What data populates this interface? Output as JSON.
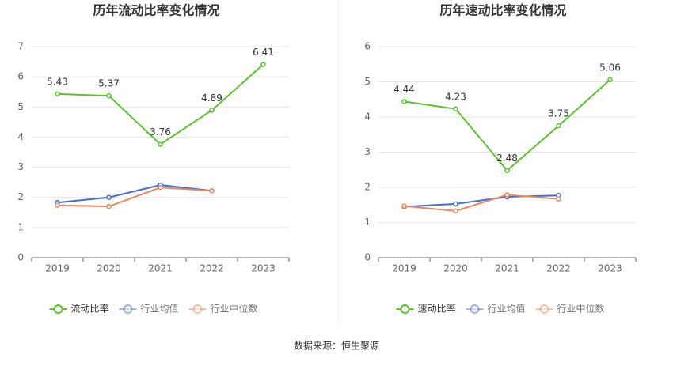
{
  "chart_data": [
    {
      "type": "line",
      "title": "历年流动比率变化情况",
      "categories": [
        "2019",
        "2020",
        "2021",
        "2022",
        "2023"
      ],
      "series": [
        {
          "name": "流动比率",
          "color": "#5ac42d",
          "values": [
            5.43,
            5.37,
            3.76,
            4.89,
            6.41
          ]
        },
        {
          "name": "行业均值",
          "color": "#3f6fd0",
          "values": [
            1.83,
            2.0,
            2.41,
            2.22,
            null
          ]
        },
        {
          "name": "行业中位数",
          "color": "#f0875a",
          "values": [
            1.74,
            1.7,
            2.33,
            2.22,
            null
          ]
        }
      ],
      "ylim": [
        0,
        7
      ],
      "yticks": [
        0,
        1,
        2,
        3,
        4,
        5,
        6,
        7
      ],
      "grid": true
    },
    {
      "type": "line",
      "title": "历年速动比率变化情况",
      "categories": [
        "2019",
        "2020",
        "2021",
        "2022",
        "2023"
      ],
      "series": [
        {
          "name": "速动比率",
          "color": "#5ac42d",
          "values": [
            4.44,
            4.23,
            2.48,
            3.75,
            5.06
          ]
        },
        {
          "name": "行业均值",
          "color": "#3f6fd0",
          "values": [
            1.45,
            1.53,
            1.73,
            1.77,
            null
          ]
        },
        {
          "name": "行业中位数",
          "color": "#f0875a",
          "values": [
            1.47,
            1.33,
            1.79,
            1.67,
            null
          ]
        }
      ],
      "ylim": [
        0,
        6
      ],
      "yticks": [
        0,
        1,
        2,
        3,
        4,
        5,
        6
      ],
      "grid": true
    }
  ],
  "source": "数据来源：恒生聚源"
}
